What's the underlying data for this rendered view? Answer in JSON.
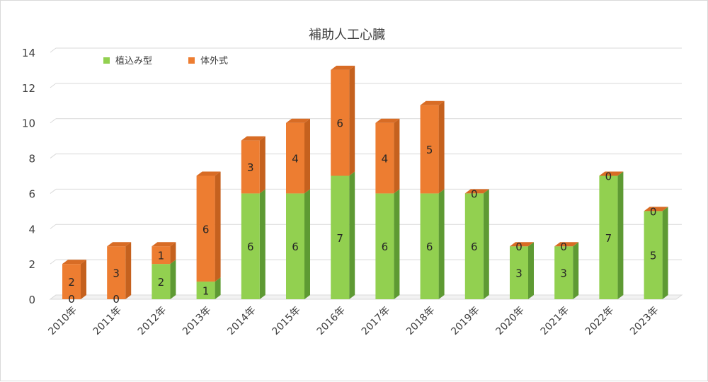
{
  "chart_data": {
    "type": "bar",
    "stacked": true,
    "title": "補助人工心臓",
    "categories": [
      "2010年",
      "2011年",
      "2012年",
      "2013年",
      "2014年",
      "2015年",
      "2016年",
      "2017年",
      "2018年",
      "2019年",
      "2020年",
      "2021年",
      "2022年",
      "2023年"
    ],
    "series": [
      {
        "name": "植込み型",
        "values": [
          0,
          0,
          2,
          1,
          6,
          6,
          7,
          6,
          6,
          6,
          3,
          3,
          7,
          5
        ],
        "color": "#92d050",
        "side": "#5e9a33",
        "top": "#a9dc73"
      },
      {
        "name": "体外式",
        "values": [
          2,
          3,
          1,
          6,
          3,
          4,
          6,
          4,
          5,
          0,
          0,
          0,
          0,
          0
        ],
        "color": "#ed7d31",
        "side": "#c5611e",
        "top": "#d86c25"
      }
    ],
    "ylim": [
      0,
      14
    ],
    "yticks": [
      0,
      2,
      4,
      6,
      8,
      10,
      12,
      14
    ],
    "grid": true,
    "legend": "top-left"
  }
}
